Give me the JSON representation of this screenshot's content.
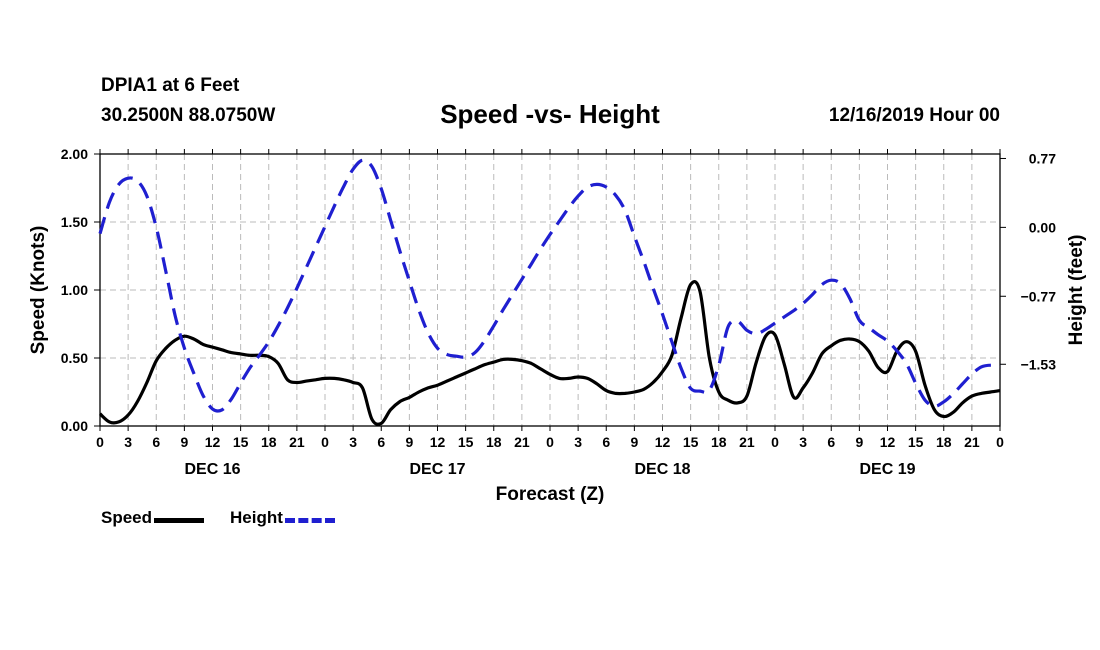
{
  "header": {
    "station": "DPIA1 at 6 Feet",
    "coords": "30.2500N 88.0750W",
    "title": "Speed -vs- Height",
    "datetime": "12/16/2019 Hour 00"
  },
  "legend": {
    "speed": "Speed",
    "height": "Height"
  },
  "colors": {
    "speed": "#000000",
    "height": "#1f1fd0",
    "grid": "#bbbbbb"
  },
  "chart_data": {
    "type": "line",
    "title": "Speed -vs- Height",
    "xlabel": "Forecast (Z)",
    "ylabel": "Speed (Knots)",
    "y2label": "Height (feet)",
    "xlim": [
      0,
      96
    ],
    "ylim": [
      0,
      2
    ],
    "y2lim": [
      -2.22,
      0.82
    ],
    "x_ticks": [
      0,
      3,
      6,
      9,
      12,
      15,
      18,
      21,
      24,
      27,
      30,
      33,
      36,
      39,
      42,
      45,
      48,
      51,
      54,
      57,
      60,
      63,
      66,
      69,
      72,
      75,
      78,
      81,
      84,
      87,
      90,
      93,
      96
    ],
    "x_tick_labels": [
      "0",
      "3",
      "6",
      "9",
      "12",
      "15",
      "18",
      "21",
      "0",
      "3",
      "6",
      "9",
      "12",
      "15",
      "18",
      "21",
      "0",
      "3",
      "6",
      "9",
      "12",
      "15",
      "18",
      "21",
      "0",
      "3",
      "6",
      "9",
      "12",
      "15",
      "18",
      "21",
      "0"
    ],
    "day_labels": [
      {
        "x": 12,
        "label": "DEC 16"
      },
      {
        "x": 36,
        "label": "DEC 17"
      },
      {
        "x": 60,
        "label": "DEC 18"
      },
      {
        "x": 84,
        "label": "DEC 19"
      }
    ],
    "y_ticks": [
      0,
      0.5,
      1,
      1.5,
      2
    ],
    "y_tick_labels": [
      "0.00",
      "0.50",
      "1.00",
      "1.50",
      "2.00"
    ],
    "y2_ticks": [
      -1.53,
      -0.77,
      0,
      0.77
    ],
    "y2_tick_labels": [
      "−1.53",
      "−0.77",
      "0.00",
      "0.77"
    ],
    "series": [
      {
        "name": "Speed",
        "axis": "left",
        "style": "solid",
        "x": [
          0,
          1,
          2,
          3,
          4,
          5,
          6,
          7,
          8,
          9,
          10,
          11,
          12,
          13,
          14,
          15,
          16,
          17,
          18,
          19,
          20,
          21,
          22,
          23,
          24,
          25,
          26,
          27,
          28,
          29,
          30,
          31,
          32,
          33,
          34,
          35,
          36,
          37,
          38,
          39,
          40,
          41,
          42,
          43,
          44,
          45,
          46,
          47,
          48,
          49,
          50,
          51,
          52,
          53,
          54,
          55,
          56,
          57,
          58,
          59,
          60,
          61,
          62,
          63,
          64,
          65,
          66,
          67,
          68,
          69,
          70,
          71,
          72,
          73,
          74,
          75,
          76,
          77,
          78,
          79,
          80,
          81,
          82,
          83,
          84,
          85,
          86,
          87,
          88,
          89,
          90,
          91,
          92,
          93,
          94,
          95,
          96
        ],
        "values": [
          0.09,
          0.03,
          0.03,
          0.08,
          0.18,
          0.32,
          0.48,
          0.57,
          0.63,
          0.66,
          0.64,
          0.6,
          0.58,
          0.56,
          0.54,
          0.53,
          0.52,
          0.52,
          0.51,
          0.46,
          0.34,
          0.32,
          0.33,
          0.34,
          0.35,
          0.35,
          0.34,
          0.32,
          0.28,
          0.05,
          0.02,
          0.12,
          0.18,
          0.21,
          0.25,
          0.28,
          0.3,
          0.33,
          0.36,
          0.39,
          0.42,
          0.45,
          0.47,
          0.49,
          0.49,
          0.48,
          0.46,
          0.42,
          0.38,
          0.35,
          0.35,
          0.36,
          0.35,
          0.31,
          0.26,
          0.24,
          0.24,
          0.25,
          0.27,
          0.32,
          0.4,
          0.52,
          0.8,
          1.04,
          0.99,
          0.5,
          0.25,
          0.19,
          0.17,
          0.22,
          0.47,
          0.66,
          0.67,
          0.45,
          0.21,
          0.28,
          0.39,
          0.53,
          0.59,
          0.63,
          0.64,
          0.62,
          0.55,
          0.43,
          0.4,
          0.55,
          0.62,
          0.55,
          0.3,
          0.12,
          0.07,
          0.1,
          0.17,
          0.22,
          0.24,
          0.25,
          0.26
        ]
      },
      {
        "name": "Height",
        "axis": "right",
        "style": "dashed",
        "x": [
          0,
          1,
          2,
          3,
          4,
          5,
          6,
          7,
          8,
          9,
          10,
          11,
          12,
          13,
          14,
          15,
          16,
          17,
          18,
          19,
          20,
          21,
          22,
          23,
          24,
          25,
          26,
          27,
          28,
          29,
          30,
          31,
          32,
          33,
          34,
          35,
          36,
          37,
          38,
          39,
          40,
          41,
          42,
          43,
          44,
          45,
          46,
          47,
          48,
          49,
          50,
          51,
          52,
          53,
          54,
          55,
          56,
          57,
          58,
          59,
          60,
          61,
          62,
          63,
          64,
          65,
          66,
          67,
          68,
          69,
          70,
          71,
          72,
          73,
          74,
          75,
          76,
          77,
          78,
          79,
          80,
          81,
          82,
          83,
          84,
          85,
          86,
          87,
          88,
          89,
          90,
          91,
          92,
          93,
          94,
          95,
          96
        ],
        "values": [
          -0.07,
          0.28,
          0.48,
          0.55,
          0.52,
          0.35,
          0.0,
          -0.48,
          -0.98,
          -1.35,
          -1.63,
          -1.88,
          -2.03,
          -2.04,
          -1.92,
          -1.74,
          -1.57,
          -1.43,
          -1.28,
          -1.1,
          -0.9,
          -0.68,
          -0.45,
          -0.22,
          0.01,
          0.24,
          0.46,
          0.65,
          0.75,
          0.68,
          0.43,
          0.08,
          -0.27,
          -0.6,
          -0.92,
          -1.18,
          -1.35,
          -1.42,
          -1.44,
          -1.45,
          -1.4,
          -1.27,
          -1.1,
          -0.92,
          -0.75,
          -0.58,
          -0.41,
          -0.24,
          -0.08,
          0.07,
          0.22,
          0.35,
          0.45,
          0.48,
          0.45,
          0.36,
          0.19,
          -0.1,
          -0.38,
          -0.68,
          -0.97,
          -1.28,
          -1.58,
          -1.8,
          -1.83,
          -1.82,
          -1.54,
          -1.11,
          -1.05,
          -1.15,
          -1.19,
          -1.14,
          -1.07,
          -1.0,
          -0.93,
          -0.85,
          -0.75,
          -0.64,
          -0.59,
          -0.63,
          -0.8,
          -1.04,
          -1.12,
          -1.2,
          -1.27,
          -1.38,
          -1.52,
          -1.74,
          -1.93,
          -2.0,
          -1.95,
          -1.86,
          -1.75,
          -1.64,
          -1.56,
          -1.54,
          -1.55
        ]
      }
    ]
  }
}
